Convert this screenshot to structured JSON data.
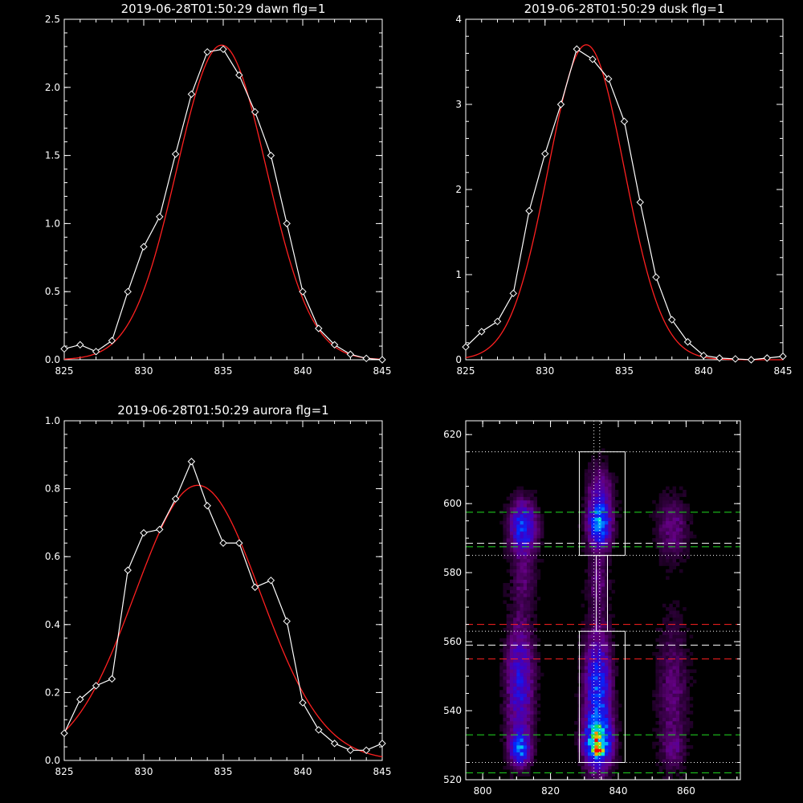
{
  "chart_data": [
    {
      "type": "line",
      "title": "2019-06-28T01:50:29 dawn flg=1",
      "xlim": [
        825,
        845
      ],
      "ylim": [
        0,
        2.5
      ],
      "xticks": [
        "825",
        "830",
        "835",
        "840",
        "845"
      ],
      "yticks": [
        "0.0",
        "0.5",
        "1.0",
        "1.5",
        "2.0",
        "2.5"
      ],
      "series": [
        {
          "style": "measured",
          "color": "#ffffff",
          "marker": "diamond",
          "x": [
            825,
            826,
            827,
            828,
            829,
            830,
            831,
            832,
            833,
            834,
            835,
            836,
            837,
            838,
            839,
            840,
            841,
            842,
            843,
            844,
            845
          ],
          "y": [
            0.08,
            0.11,
            0.06,
            0.14,
            0.5,
            0.83,
            1.05,
            1.51,
            1.95,
            2.26,
            2.28,
            2.09,
            1.82,
            1.5,
            1.0,
            0.5,
            0.23,
            0.11,
            0.04,
            0.01,
            0.0
          ]
        },
        {
          "style": "fit",
          "color": "#ff2020",
          "gaussian": {
            "amp": 2.31,
            "center": 834.9,
            "sigma": 2.82
          }
        }
      ]
    },
    {
      "type": "line",
      "title": "2019-06-28T01:50:29 dusk flg=1",
      "xlim": [
        825,
        845
      ],
      "ylim": [
        0,
        4
      ],
      "xticks": [
        "825",
        "830",
        "835",
        "840",
        "845"
      ],
      "yticks": [
        "0",
        "1",
        "2",
        "3",
        "4"
      ],
      "series": [
        {
          "style": "measured",
          "color": "#ffffff",
          "marker": "diamond",
          "x": [
            825,
            826,
            827,
            828,
            829,
            830,
            831,
            832,
            833,
            834,
            835,
            836,
            837,
            838,
            839,
            840,
            841,
            842,
            843,
            844,
            845
          ],
          "y": [
            0.15,
            0.33,
            0.45,
            0.78,
            1.75,
            2.42,
            3.0,
            3.65,
            3.53,
            3.3,
            2.8,
            1.85,
            0.97,
            0.47,
            0.21,
            0.05,
            0.02,
            0.01,
            0.0,
            0.02,
            0.04
          ]
        },
        {
          "style": "fit",
          "color": "#ff2020",
          "gaussian": {
            "amp": 3.7,
            "center": 832.6,
            "sigma": 2.4
          }
        }
      ]
    },
    {
      "type": "line",
      "title": "2019-06-28T01:50:29 aurora flg=1",
      "xlim": [
        825,
        845
      ],
      "ylim": [
        0,
        1.0
      ],
      "xticks": [
        "825",
        "830",
        "835",
        "840",
        "845"
      ],
      "yticks": [
        "0.0",
        "0.2",
        "0.4",
        "0.6",
        "0.8",
        "1.0"
      ],
      "series": [
        {
          "style": "measured",
          "color": "#ffffff",
          "marker": "diamond",
          "x": [
            825,
            826,
            827,
            828,
            829,
            830,
            831,
            832,
            833,
            834,
            835,
            836,
            837,
            838,
            839,
            840,
            841,
            842,
            843,
            844,
            845
          ],
          "y": [
            0.08,
            0.18,
            0.22,
            0.24,
            0.56,
            0.67,
            0.68,
            0.77,
            0.88,
            0.75,
            0.64,
            0.64,
            0.51,
            0.53,
            0.41,
            0.17,
            0.09,
            0.05,
            0.03,
            0.03,
            0.05
          ]
        },
        {
          "style": "fit",
          "color": "#ff2020",
          "gaussian": {
            "amp": 0.81,
            "center": 833.4,
            "sigma": 3.95
          }
        }
      ]
    },
    {
      "type": "heatmap",
      "title": "",
      "xlim": [
        795,
        876
      ],
      "ylim": [
        520,
        624
      ],
      "xticks": [
        "800",
        "820",
        "840",
        "860"
      ],
      "yticks": [
        "520",
        "540",
        "560",
        "580",
        "600",
        "620"
      ],
      "colormap": "rainbow",
      "boxes": [
        {
          "x0": 828.5,
          "x1": 842,
          "y0": 585,
          "y1": 615,
          "color": "#ffffff"
        },
        {
          "x0": 828.5,
          "x1": 842,
          "y0": 525,
          "y1": 563,
          "color": "#ffffff"
        },
        {
          "x0": 833.5,
          "x1": 836.8,
          "y0": 563,
          "y1": 585,
          "color": "#ffffff"
        }
      ],
      "vlines": [
        {
          "x": 832.8,
          "style": "dotted",
          "color": "#ffffff"
        },
        {
          "x": 834.5,
          "style": "dotted",
          "color": "#ffffff"
        }
      ],
      "hlines": [
        {
          "y": 615,
          "style": "dotted",
          "color": "#ffffff"
        },
        {
          "y": 597.5,
          "style": "dashed",
          "color": "#20dd20"
        },
        {
          "y": 588.5,
          "style": "dashed",
          "color": "#ffffff"
        },
        {
          "y": 587.5,
          "style": "dashed",
          "color": "#20dd20"
        },
        {
          "y": 585,
          "style": "dotted",
          "color": "#ffffff"
        },
        {
          "y": 565,
          "style": "dashed",
          "color": "#ff2020"
        },
        {
          "y": 563,
          "style": "dotted",
          "color": "#ffffff"
        },
        {
          "y": 559,
          "style": "dashed",
          "color": "#ffffff"
        },
        {
          "y": 555,
          "style": "dashed",
          "color": "#ff2020"
        },
        {
          "y": 533,
          "style": "dashed",
          "color": "#20dd20"
        },
        {
          "y": 525,
          "style": "dotted",
          "color": "#ffffff"
        },
        {
          "y": 522,
          "style": "dashed",
          "color": "#20dd20"
        }
      ],
      "blobs": [
        {
          "x": 812,
          "y": 593,
          "sx": 2.6,
          "sy": 5,
          "amp": 0.4
        },
        {
          "x": 834.5,
          "y": 594,
          "sx": 2.2,
          "sy": 4.5,
          "amp": 0.5
        },
        {
          "x": 834.5,
          "y": 604,
          "sx": 2.4,
          "sy": 5,
          "amp": 0.18
        },
        {
          "x": 812,
          "y": 578,
          "sx": 2.5,
          "sy": 5,
          "amp": 0.1
        },
        {
          "x": 834,
          "y": 578,
          "sx": 2.0,
          "sy": 5,
          "amp": 0.12
        },
        {
          "x": 856,
          "y": 593,
          "sx": 3,
          "sy": 6,
          "amp": 0.14
        },
        {
          "x": 834,
          "y": 545,
          "sx": 2.5,
          "sy": 12,
          "amp": 0.42
        },
        {
          "x": 834,
          "y": 531,
          "sx": 2.6,
          "sy": 4.5,
          "amp": 0.55
        },
        {
          "x": 834,
          "y": 528.5,
          "sx": 1.0,
          "sy": 1.2,
          "amp": 0.55
        },
        {
          "x": 811,
          "y": 548,
          "sx": 2.6,
          "sy": 12,
          "amp": 0.3
        },
        {
          "x": 811,
          "y": 529,
          "sx": 2.0,
          "sy": 3,
          "amp": 0.4
        },
        {
          "x": 856,
          "y": 545,
          "sx": 3,
          "sy": 14,
          "amp": 0.12
        },
        {
          "x": 856,
          "y": 529,
          "sx": 2,
          "sy": 3,
          "amp": 0.1
        }
      ]
    }
  ]
}
